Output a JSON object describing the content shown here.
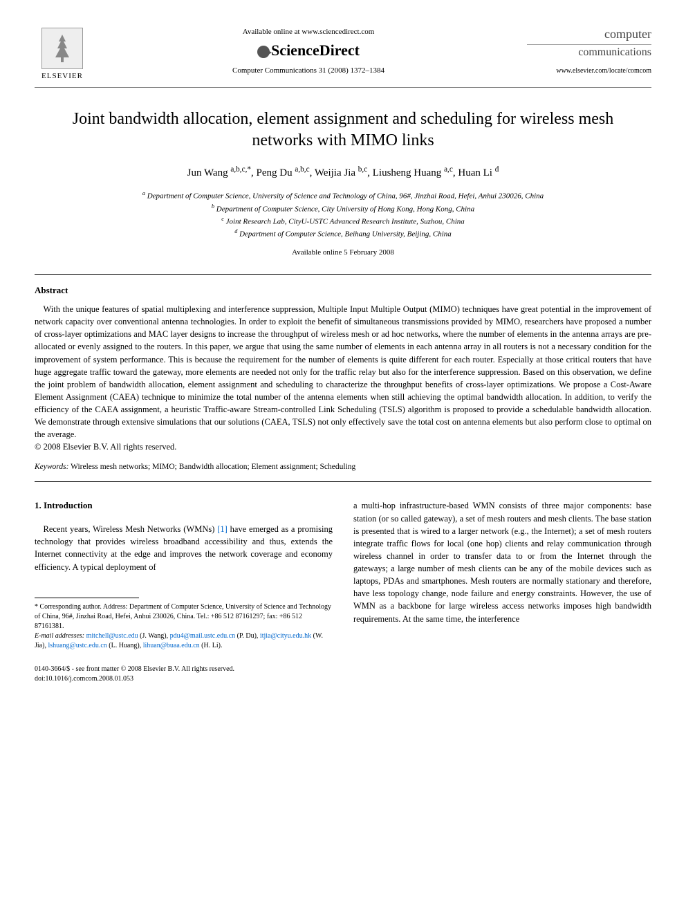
{
  "header": {
    "available_online": "Available online at www.sciencedirect.com",
    "sciencedirect": "ScienceDirect",
    "journal_ref": "Computer Communications 31 (2008) 1372–1384",
    "elsevier": "ELSEVIER",
    "journal_logo_1": "computer",
    "journal_logo_2": "communications",
    "journal_url": "www.elsevier.com/locate/comcom"
  },
  "paper": {
    "title": "Joint bandwidth allocation, element assignment and scheduling for wireless mesh networks with MIMO links",
    "authors_html": "Jun Wang <sup>a,b,c,*</sup>, Peng Du <sup>a,b,c</sup>, Weijia Jia <sup>b,c</sup>, Liusheng Huang <sup>a,c</sup>, Huan Li <sup>d</sup>",
    "affiliations": [
      "a Department of Computer Science, University of Science and Technology of China, 96#, Jinzhai Road, Hefei, Anhui 230026, China",
      "b Department of Computer Science, City University of Hong Kong, Hong Kong, China",
      "c Joint Research Lab, CityU-USTC Advanced Research Institute, Suzhou, China",
      "d Department of Computer Science, Beihang University, Beijing, China"
    ],
    "available_date": "Available online 5 February 2008"
  },
  "abstract": {
    "heading": "Abstract",
    "text": "With the unique features of spatial multiplexing and interference suppression, Multiple Input Multiple Output (MIMO) techniques have great potential in the improvement of network capacity over conventional antenna technologies. In order to exploit the benefit of simultaneous transmissions provided by MIMO, researchers have proposed a number of cross-layer optimizations and MAC layer designs to increase the throughput of wireless mesh or ad hoc networks, where the number of elements in the antenna arrays are pre-allocated or evenly assigned to the routers. In this paper, we argue that using the same number of elements in each antenna array in all routers is not a necessary condition for the improvement of system performance. This is because the requirement for the number of elements is quite different for each router. Especially at those critical routers that have huge aggregate traffic toward the gateway, more elements are needed not only for the traffic relay but also for the interference suppression. Based on this observation, we define the joint problem of bandwidth allocation, element assignment and scheduling to characterize the throughput benefits of cross-layer optimizations. We propose a Cost-Aware Element Assignment (CAEA) technique to minimize the total number of the antenna elements when still achieving the optimal bandwidth allocation. In addition, to verify the efficiency of the CAEA assignment, a heuristic Traffic-aware Stream-controlled Link Scheduling (TSLS) algorithm is proposed to provide a schedulable bandwidth allocation. We demonstrate through extensive simulations that our solutions (CAEA, TSLS) not only effectively save the total cost on antenna elements but also perform close to optimal on the average.",
    "copyright": "© 2008 Elsevier B.V. All rights reserved."
  },
  "keywords": {
    "label": "Keywords:",
    "text": " Wireless mesh networks; MIMO; Bandwidth allocation; Element assignment; Scheduling"
  },
  "intro": {
    "heading": "1. Introduction",
    "col1_pre": "Recent years, Wireless Mesh Networks (WMNs) ",
    "col1_ref": "[1]",
    "col1_post": " have emerged as a promising technology that provides wireless broadband accessibility and thus, extends the Internet connectivity at the edge and improves the network coverage and economy efficiency. A typical deployment of",
    "col2": "a multi-hop infrastructure-based WMN consists of three major components: base station (or so called gateway), a set of mesh routers and mesh clients. The base station is presented that is wired to a larger network (e.g., the Internet); a set of mesh routers integrate traffic flows for local (one hop) clients and relay communication through wireless channel in order to transfer data to or from the Internet through the gateways; a large number of mesh clients can be any of the mobile devices such as laptops, PDAs and smartphones. Mesh routers are normally stationary and therefore, have less topology change, node failure and energy constraints. However, the use of WMN as a backbone for large wireless access networks imposes high bandwidth requirements. At the same time, the interference"
  },
  "footnote": {
    "corresponding": "* Corresponding author. Address: Department of Computer Science, University of Science and Technology of China, 96#, Jinzhai Road, Hefei, Anhui 230026, China. Tel.: +86 512 87161297; fax: +86 512 87161381.",
    "email_label": "E-mail addresses:",
    "emails": [
      {
        "addr": "mitchell@ustc.edu",
        "who": " (J. Wang), "
      },
      {
        "addr": "pdu4@mail.ustc.edu.cn",
        "who": " (P. Du), "
      },
      {
        "addr": "itjia@cityu.edu.hk",
        "who": " (W. Jia), "
      },
      {
        "addr": "lshuang@ustc.edu.cn",
        "who": " (L. Huang), "
      },
      {
        "addr": "lihuan@buaa.edu.cn",
        "who": " (H. Li)."
      }
    ]
  },
  "doi": {
    "line1": "0140-3664/$ - see front matter © 2008 Elsevier B.V. All rights reserved.",
    "line2": "doi:10.1016/j.comcom.2008.01.053"
  }
}
